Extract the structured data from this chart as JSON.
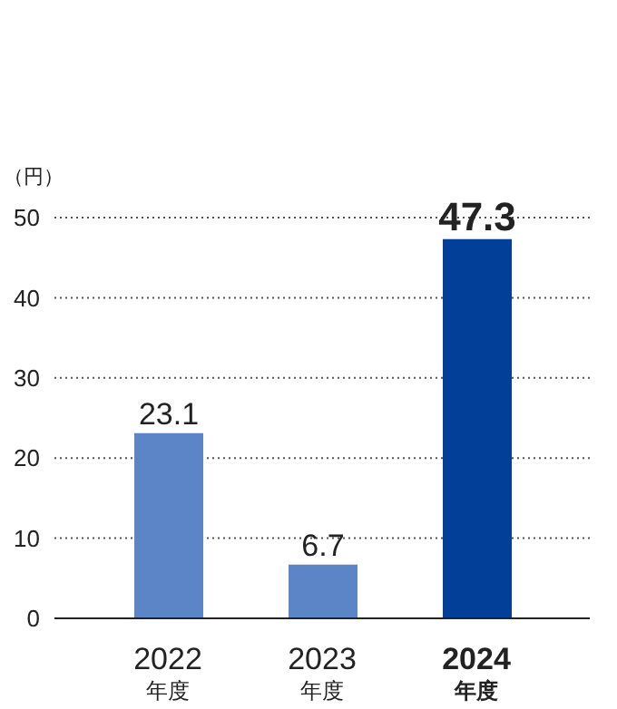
{
  "chart_data": {
    "type": "bar",
    "ylabel": "（円）",
    "categories": [
      "2022\n年度",
      "2023\n年度",
      "2024\n年度"
    ],
    "values": [
      23.1,
      6.7,
      47.3
    ],
    "colors": [
      "#5b85c7",
      "#5b85c7",
      "#023f98"
    ],
    "ylim": [
      0,
      50
    ],
    "yticks": [
      0,
      10,
      20,
      30,
      40,
      50
    ],
    "grid": "y",
    "data_labels": true
  }
}
